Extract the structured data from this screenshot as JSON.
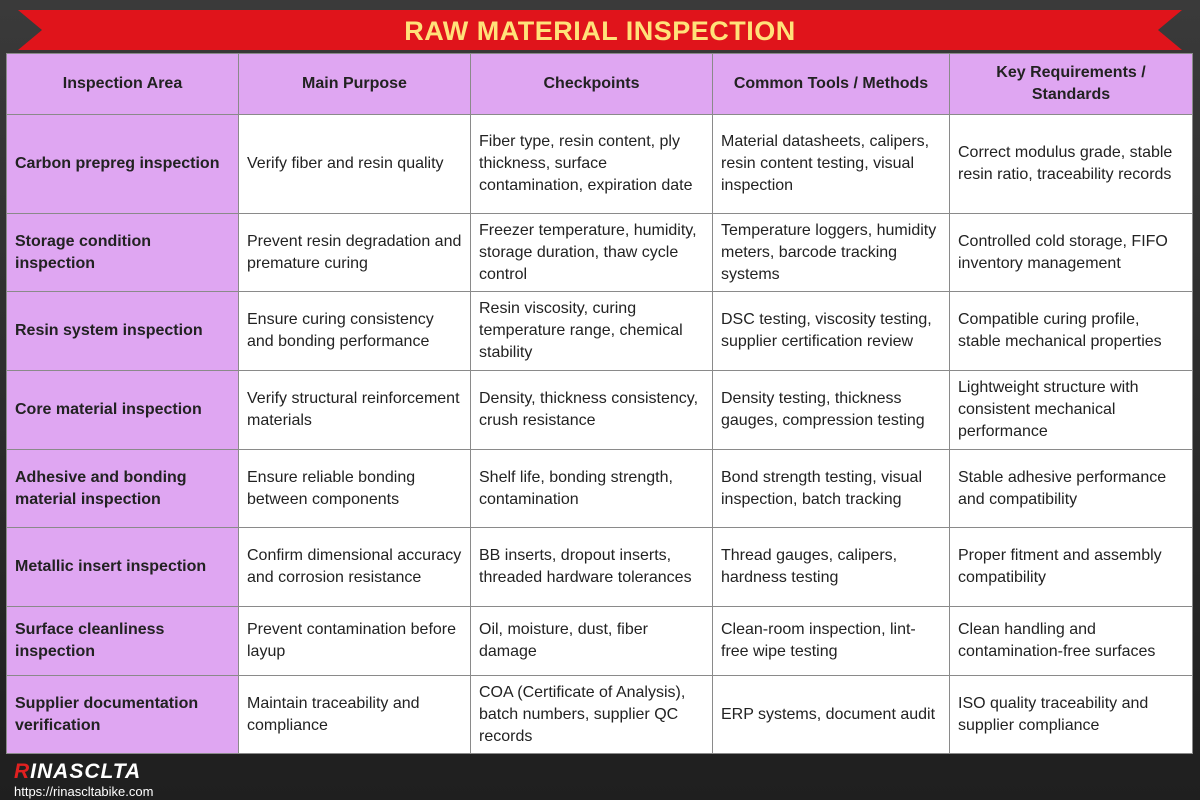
{
  "header": {
    "title": "RAW MATERIAL INSPECTION"
  },
  "table": {
    "columns": [
      "Inspection Area",
      "Main Purpose",
      "Checkpoints",
      "Common Tools / Methods",
      "Key Requirements / Standards"
    ],
    "rows": [
      [
        "Carbon prepreg inspection",
        "Verify fiber and resin quality",
        "Fiber type, resin content, ply thickness, surface contamination, expiration date",
        "Material datasheets, calipers, resin content testing, visual inspection",
        "Correct modulus grade, stable resin ratio, traceability records"
      ],
      [
        "Storage condition inspection",
        "Prevent resin degradation and premature curing",
        "Freezer temperature, humidity, storage duration, thaw cycle control",
        "Temperature loggers, humidity meters, barcode tracking systems",
        "Controlled cold storage, FIFO inventory management"
      ],
      [
        "Resin system inspection",
        "Ensure curing consistency and bonding performance",
        "Resin viscosity, curing temperature range, chemical stability",
        "DSC testing, viscosity testing, supplier certification review",
        "Compatible curing profile, stable mechanical properties"
      ],
      [
        "Core material inspection",
        "Verify structural reinforcement materials",
        "Density, thickness consistency, crush resistance",
        "Density testing, thickness gauges, compression testing",
        "Lightweight structure with consistent mechanical performance"
      ],
      [
        "Adhesive and bonding material inspection",
        "Ensure reliable bonding between components",
        "Shelf life, bonding strength, contamination",
        "Bond strength testing, visual inspection, batch tracking",
        "Stable adhesive performance and compatibility"
      ],
      [
        "Metallic insert inspection",
        "Confirm dimensional accuracy and corrosion resistance",
        "BB inserts, dropout inserts, threaded hardware tolerances",
        "Thread gauges, calipers, hardness testing",
        "Proper fitment and assembly compatibility"
      ],
      [
        "Surface cleanliness inspection",
        "Prevent contamination before layup",
        "Oil, moisture, dust, fiber damage",
        "Clean-room inspection, lint-free wipe testing",
        "Clean handling and contamination-free surfaces"
      ],
      [
        "Supplier documentation verification",
        "Maintain traceability and compliance",
        "COA (Certificate of Analysis), batch numbers, supplier QC records",
        "ERP systems, document audit",
        "ISO quality traceability and supplier compliance"
      ]
    ]
  },
  "footer": {
    "brand_first": "R",
    "brand_rest": "INASCLTA",
    "url": "https://rinascltabike.com"
  }
}
